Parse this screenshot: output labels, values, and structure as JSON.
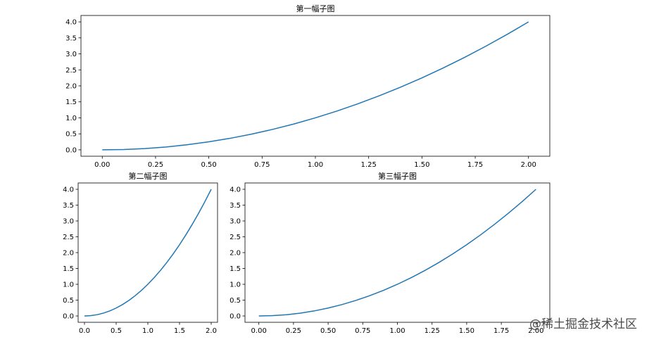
{
  "figure": {
    "watermark": "@稀土掘金技术社区",
    "line_color": "#1f77b4"
  },
  "chart_data": [
    {
      "type": "line",
      "title": "第一幅子图",
      "xlabel": "",
      "ylabel": "",
      "xlim": [
        -0.1,
        2.1
      ],
      "ylim": [
        -0.2,
        4.2
      ],
      "xticks": [
        0.0,
        0.25,
        0.5,
        0.75,
        1.0,
        1.25,
        1.5,
        1.75,
        2.0
      ],
      "xtick_labels": [
        "0.00",
        "0.25",
        "0.50",
        "0.75",
        "1.00",
        "1.25",
        "1.50",
        "1.75",
        "2.00"
      ],
      "yticks": [
        0.0,
        0.5,
        1.0,
        1.5,
        2.0,
        2.5,
        3.0,
        3.5,
        4.0
      ],
      "ytick_labels": [
        "0.0",
        "0.5",
        "1.0",
        "1.5",
        "2.0",
        "2.5",
        "3.0",
        "3.5",
        "4.0"
      ],
      "grid": false,
      "series": [
        {
          "x": [
            0,
            0.1,
            0.2,
            0.3,
            0.4,
            0.5,
            0.6,
            0.7,
            0.8,
            0.9,
            1.0,
            1.1,
            1.2,
            1.3,
            1.4,
            1.5,
            1.6,
            1.7,
            1.8,
            1.9,
            2.0
          ],
          "y": [
            0,
            0.01,
            0.04,
            0.09,
            0.16,
            0.25,
            0.36,
            0.49,
            0.64,
            0.81,
            1.0,
            1.21,
            1.44,
            1.69,
            1.96,
            2.25,
            2.56,
            2.89,
            3.24,
            3.61,
            4.0
          ]
        }
      ]
    },
    {
      "type": "line",
      "title": "第二幅子图",
      "xlabel": "",
      "ylabel": "",
      "xlim": [
        -0.1,
        2.1
      ],
      "ylim": [
        -0.2,
        4.2
      ],
      "xticks": [
        0.0,
        0.5,
        1.0,
        1.5,
        2.0
      ],
      "xtick_labels": [
        "0.0",
        "0.5",
        "1.0",
        "1.5",
        "2.0"
      ],
      "yticks": [
        0.0,
        0.5,
        1.0,
        1.5,
        2.0,
        2.5,
        3.0,
        3.5,
        4.0
      ],
      "ytick_labels": [
        "0.0",
        "0.5",
        "1.0",
        "1.5",
        "2.0",
        "2.5",
        "3.0",
        "3.5",
        "4.0"
      ],
      "grid": false,
      "series": [
        {
          "x": [
            0,
            0.1,
            0.2,
            0.3,
            0.4,
            0.5,
            0.6,
            0.7,
            0.8,
            0.9,
            1.0,
            1.1,
            1.2,
            1.3,
            1.4,
            1.5,
            1.6,
            1.7,
            1.8,
            1.9,
            2.0
          ],
          "y": [
            0,
            0.01,
            0.04,
            0.09,
            0.16,
            0.25,
            0.36,
            0.49,
            0.64,
            0.81,
            1.0,
            1.21,
            1.44,
            1.69,
            1.96,
            2.25,
            2.56,
            2.89,
            3.24,
            3.61,
            4.0
          ]
        }
      ]
    },
    {
      "type": "line",
      "title": "第三幅子图",
      "xlabel": "",
      "ylabel": "",
      "xlim": [
        -0.1,
        2.1
      ],
      "ylim": [
        -0.2,
        4.2
      ],
      "xticks": [
        0.0,
        0.25,
        0.5,
        0.75,
        1.0,
        1.25,
        1.5,
        1.75,
        2.0
      ],
      "xtick_labels": [
        "0.00",
        "0.25",
        "0.50",
        "0.75",
        "1.00",
        "1.25",
        "1.50",
        "1.75",
        "2.00"
      ],
      "yticks": [
        0.0,
        0.5,
        1.0,
        1.5,
        2.0,
        2.5,
        3.0,
        3.5,
        4.0
      ],
      "ytick_labels": [
        "0.0",
        "0.5",
        "1.0",
        "1.5",
        "2.0",
        "2.5",
        "3.0",
        "3.5",
        "4.0"
      ],
      "grid": false,
      "series": [
        {
          "x": [
            0,
            0.1,
            0.2,
            0.3,
            0.4,
            0.5,
            0.6,
            0.7,
            0.8,
            0.9,
            1.0,
            1.1,
            1.2,
            1.3,
            1.4,
            1.5,
            1.6,
            1.7,
            1.8,
            1.9,
            2.0
          ],
          "y": [
            0,
            0.01,
            0.04,
            0.09,
            0.16,
            0.25,
            0.36,
            0.49,
            0.64,
            0.81,
            1.0,
            1.21,
            1.44,
            1.69,
            1.96,
            2.25,
            2.56,
            2.89,
            3.24,
            3.61,
            4.0
          ]
        }
      ]
    }
  ]
}
